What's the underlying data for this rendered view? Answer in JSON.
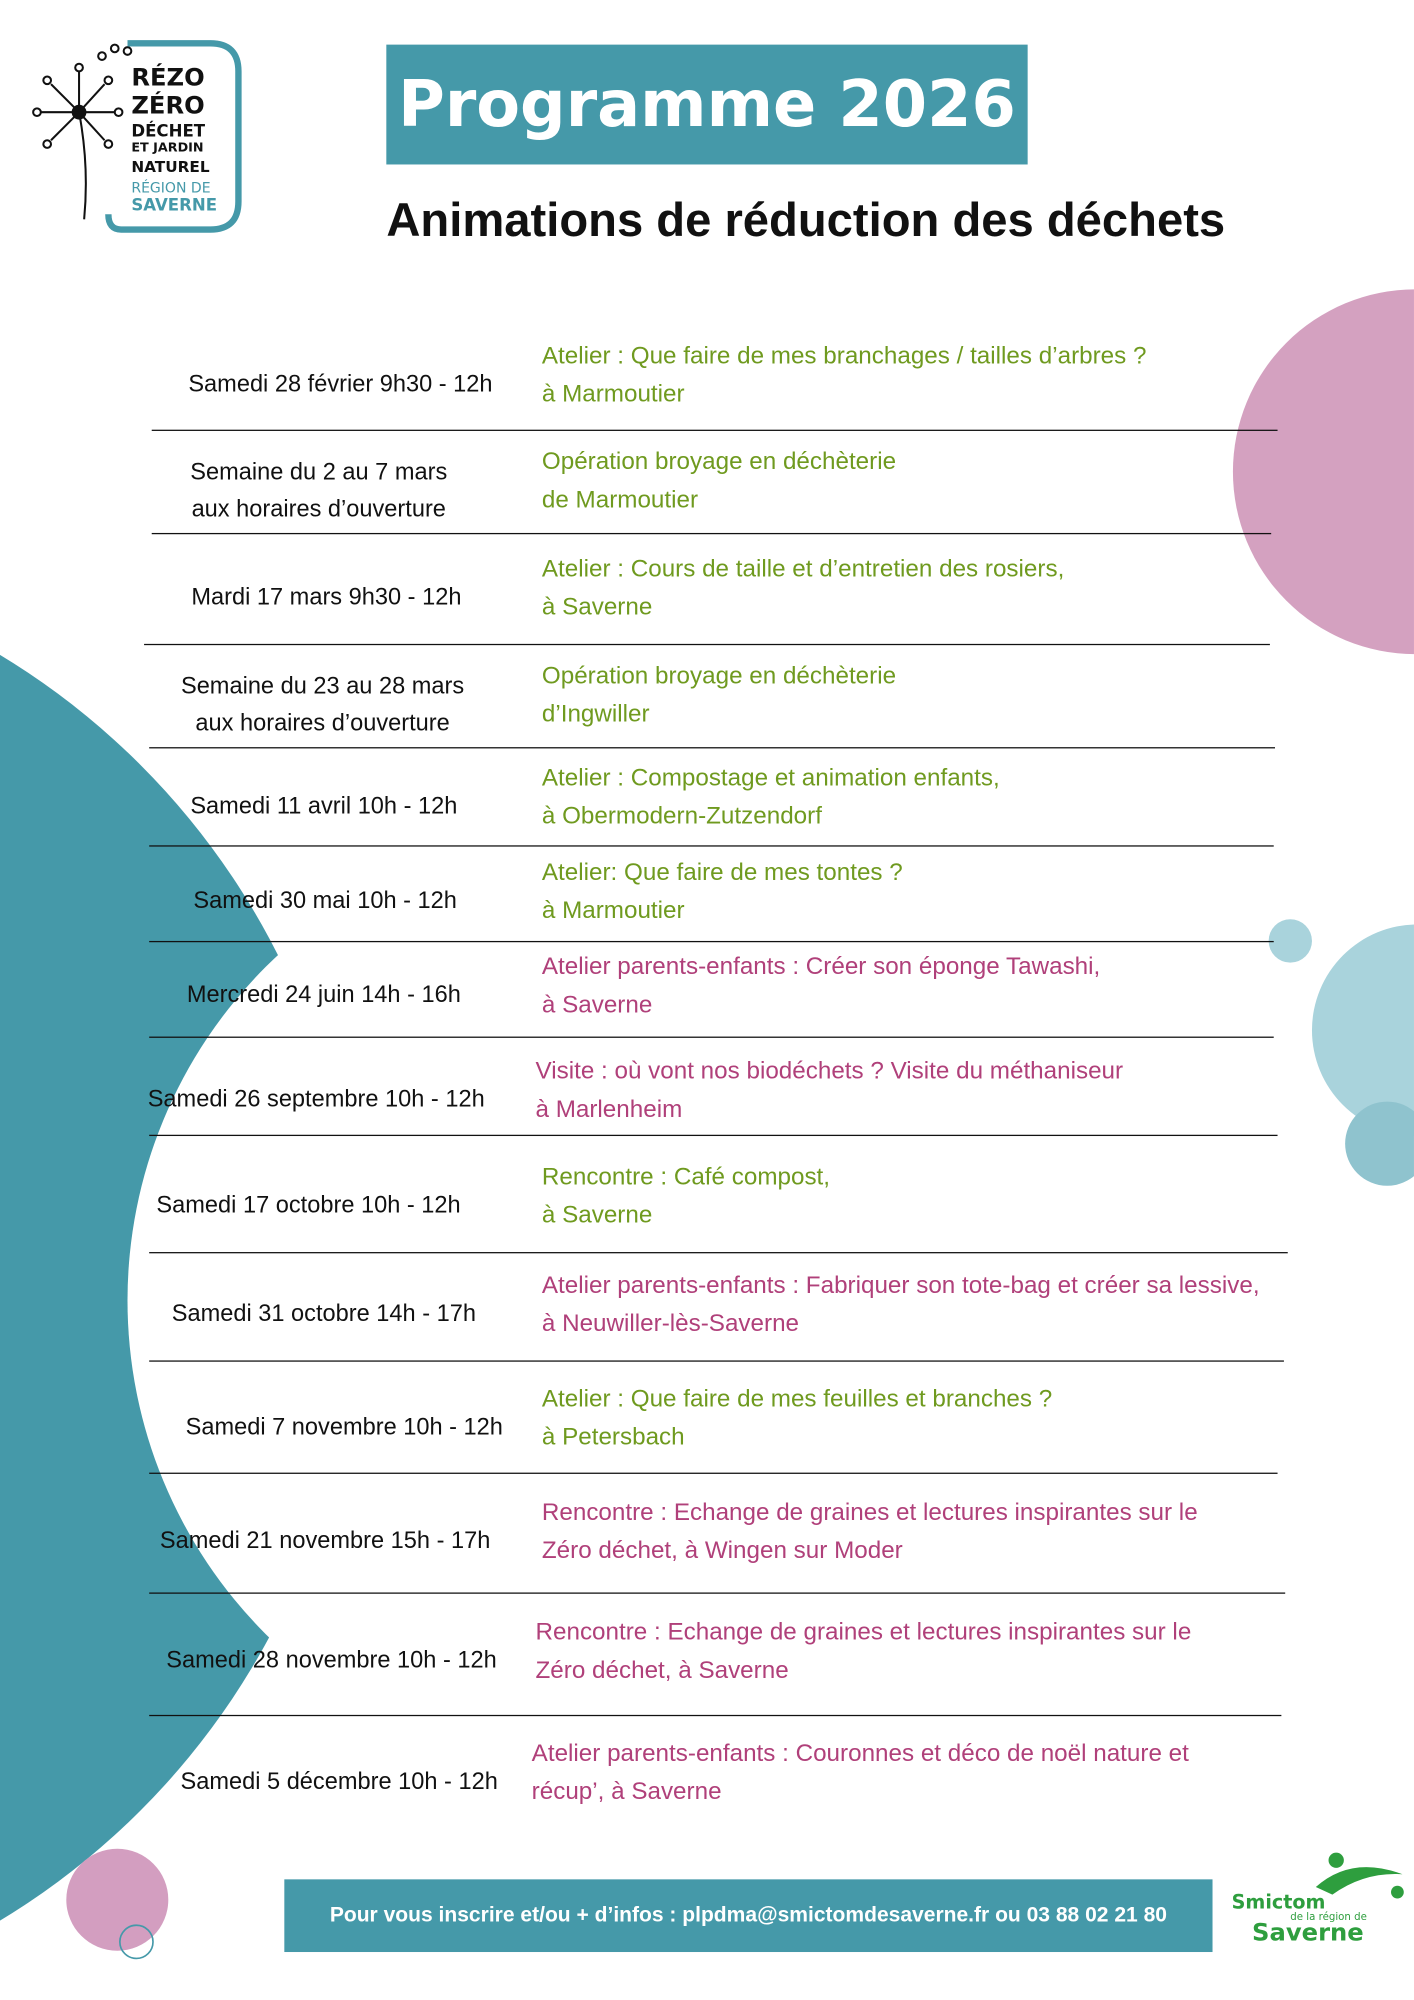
{
  "header": {
    "logo": {
      "lines": [
        "RÉZO",
        "ZÉRO",
        "DÉCHET",
        "ET JARDIN",
        "NATUREL",
        "RÉGION DE",
        "SAVERNE"
      ]
    },
    "title": "Programme 2026",
    "subtitle": "Animations de réduction des déchets"
  },
  "events": [
    {
      "date": [
        "Samedi 28 février 9h30 - 12h"
      ],
      "description": [
        "Atelier : Que faire de mes branchages / tailles d’arbres ?",
        "à Marmoutier"
      ],
      "color": "#6f9a1f"
    },
    {
      "date": [
        "Semaine du 2 au 7 mars",
        "aux horaires d’ouverture"
      ],
      "description": [
        "Opération broyage en déchèterie",
        "de Marmoutier"
      ],
      "color": "#6f9a1f"
    },
    {
      "date": [
        "Mardi 17 mars 9h30 - 12h"
      ],
      "description": [
        "Atelier : Cours de taille et d’entretien des rosiers,",
        "à Saverne"
      ],
      "color": "#6f9a1f"
    },
    {
      "date": [
        "Semaine du 23 au 28 mars",
        "aux horaires d’ouverture"
      ],
      "description": [
        "Opération broyage en déchèterie",
        "d’Ingwiller"
      ],
      "color": "#6f9a1f"
    },
    {
      "date": [
        "Samedi 11 avril  10h - 12h"
      ],
      "description": [
        "Atelier : Compostage et animation enfants,",
        "à Obermodern-Zutzendorf"
      ],
      "color": "#6f9a1f"
    },
    {
      "date": [
        "Samedi 30 mai 10h - 12h"
      ],
      "description": [
        "Atelier: Que faire de mes tontes ?",
        "à Marmoutier"
      ],
      "color": "#6f9a1f"
    },
    {
      "date": [
        "Mercredi 24 juin 14h - 16h"
      ],
      "description": [
        "Atelier parents-enfants : Créer son éponge Tawashi,",
        "à Saverne"
      ],
      "color": "#b0407a"
    },
    {
      "date": [
        "Samedi 26 septembre 10h - 12h"
      ],
      "description": [
        "Visite : où vont nos biodéchets ? Visite du méthaniseur",
        "à Marlenheim"
      ],
      "color": "#b0407a"
    },
    {
      "date": [
        "Samedi 17 octobre 10h - 12h"
      ],
      "description": [
        "Rencontre : Café compost,",
        "à Saverne"
      ],
      "color": "#6f9a1f"
    },
    {
      "date": [
        "Samedi 31 octobre  14h - 17h"
      ],
      "description": [
        "Atelier parents-enfants : Fabriquer son tote-bag et créer sa lessive,",
        "à Neuwiller-lès-Saverne"
      ],
      "color": "#b0407a"
    },
    {
      "date": [
        "Samedi 7 novembre 10h - 12h"
      ],
      "description": [
        "Atelier : Que faire de mes feuilles et branches ?",
        "à Petersbach"
      ],
      "color": "#6f9a1f"
    },
    {
      "date": [
        "Samedi 21 novembre  15h - 17h"
      ],
      "description": [
        "Rencontre : Echange de graines et lectures inspirantes sur le",
        "Zéro déchet, à Wingen sur Moder"
      ],
      "color": "#b0407a"
    },
    {
      "date": [
        "Samedi 28 novembre  10h - 12h"
      ],
      "description": [
        "Rencontre : Echange de graines et lectures inspirantes sur le",
        "Zéro déchet, à Saverne"
      ],
      "color": "#b0407a"
    },
    {
      "date": [
        "Samedi 5 décembre 10h - 12h"
      ],
      "description": [
        "Atelier parents-enfants : Couronnes et déco de noël nature et",
        "récup’, à Saverne"
      ],
      "color": "#b0407a"
    }
  ],
  "footer": {
    "contact": "Pour vous inscrire et/ou + d’infos : plpdma@smictomdesaverne.fr ou 03 88 02 21 80",
    "logo": {
      "name": "Smictom",
      "sub": "de la région de",
      "place": "Saverne"
    }
  }
}
